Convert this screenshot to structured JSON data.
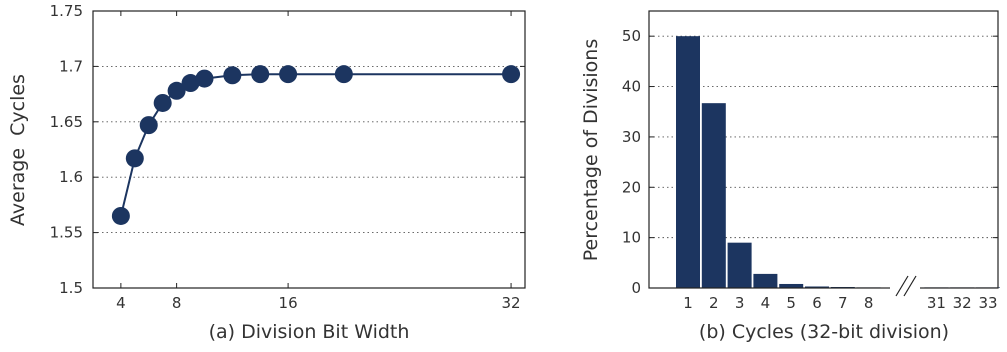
{
  "chart_data": [
    {
      "type": "line",
      "xlabel": "(a) Division Bit Width",
      "ylabel": "Average  Cycles",
      "x_ticks": [
        "4",
        "8",
        "16",
        "32"
      ],
      "y_ticks": [
        "1.5",
        "1.55",
        "1.6",
        "1.65",
        "1.7",
        "1.75"
      ],
      "xlim": [
        2,
        33
      ],
      "ylim": [
        1.5,
        1.75
      ],
      "grid": "horizontal dotted",
      "color": "#1c3560",
      "x": [
        4,
        5,
        6,
        7,
        8,
        9,
        10,
        12,
        14,
        16,
        20,
        32
      ],
      "y": [
        1.565,
        1.617,
        1.647,
        1.667,
        1.678,
        1.685,
        1.689,
        1.692,
        1.693,
        1.693,
        1.693,
        1.693
      ]
    },
    {
      "type": "bar",
      "xlabel": "(b) Cycles (32-bit division)",
      "ylabel": "Percentage of Divisions",
      "categories": [
        "1",
        "2",
        "3",
        "4",
        "5",
        "6",
        "7",
        "8",
        "31",
        "32",
        "33"
      ],
      "values": [
        50,
        36.7,
        9,
        2.8,
        0.8,
        0.3,
        0.2,
        0.1,
        0.05,
        0.05,
        0.05
      ],
      "y_ticks": [
        "0",
        "10",
        "20",
        "30",
        "40",
        "50"
      ],
      "ylim": [
        0,
        55
      ],
      "grid": "horizontal dotted",
      "axis_break": "between 8 and 31",
      "color": "#1c3560"
    }
  ]
}
